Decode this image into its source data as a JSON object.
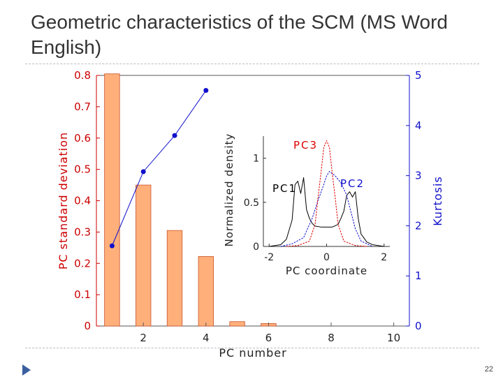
{
  "slide": {
    "title": "Geometric characteristics of the SCM (MS Word English)",
    "page_number": "22"
  },
  "colors": {
    "bar_fill": "#ffb07a",
    "bar_stroke": "#c8502a",
    "left_axis": "#cc0000",
    "right_axis": "#1010cc",
    "pc1": "#000000",
    "pc2": "#1010cc",
    "pc3": "#dd0000",
    "title": "#333333",
    "rule": "#b8bcc4",
    "bullet": "#3a5f9e"
  },
  "chart_data": [
    {
      "type": "bar",
      "xlabel": "PC number",
      "ylabel": "PC standard deviation",
      "y2label": "Kurtosis",
      "xlim": [
        0.5,
        10.5
      ],
      "ylim": [
        0,
        0.8
      ],
      "y2lim": [
        0,
        5
      ],
      "xticks": [
        "2",
        "4",
        "6",
        "8",
        "10"
      ],
      "yticks": [
        "0",
        "0.1",
        "0.2",
        "0.3",
        "0.4",
        "0.5",
        "0.6",
        "0.7",
        "0.8"
      ],
      "y2ticks": [
        "0",
        "1",
        "2",
        "3",
        "4",
        "5"
      ],
      "categories": [
        1,
        2,
        3,
        4,
        5,
        6
      ],
      "values": [
        0.805,
        0.45,
        0.305,
        0.222,
        0.014,
        0.008
      ],
      "overlay_line": {
        "axis": "right",
        "x": [
          1,
          2,
          3,
          4
        ],
        "y": [
          1.6,
          3.08,
          3.8,
          4.7
        ]
      }
    },
    {
      "type": "line",
      "xlabel": "PC coordinate",
      "ylabel": "Normalized density",
      "xlim": [
        -2.2,
        2.2
      ],
      "ylim": [
        0,
        1.25
      ],
      "xticks": [
        "-2",
        "0",
        "2"
      ],
      "yticks": [
        "0",
        "0.5",
        "1"
      ],
      "series": [
        {
          "name": "PC1",
          "x": [
            -2.0,
            -1.6,
            -1.4,
            -1.2,
            -1.1,
            -1.0,
            -0.9,
            -0.8,
            -0.7,
            -0.6,
            -0.5,
            -0.4,
            -0.2,
            0.0,
            0.2,
            0.4,
            0.5,
            0.6,
            0.7,
            0.8,
            0.9,
            1.0,
            1.1,
            1.2,
            1.4,
            1.6,
            2.0
          ],
          "y": [
            0.0,
            0.02,
            0.08,
            0.3,
            0.7,
            0.74,
            0.6,
            0.78,
            0.42,
            0.32,
            0.26,
            0.23,
            0.22,
            0.22,
            0.22,
            0.25,
            0.32,
            0.4,
            0.58,
            0.62,
            0.56,
            0.62,
            0.32,
            0.14,
            0.05,
            0.02,
            0.0
          ]
        },
        {
          "name": "PC2",
          "x": [
            -1.6,
            -1.2,
            -0.8,
            -0.5,
            -0.3,
            -0.1,
            0.0,
            0.1,
            0.3,
            0.5,
            0.7,
            0.8,
            1.0,
            1.2,
            1.6
          ],
          "y": [
            0.0,
            0.03,
            0.1,
            0.32,
            0.52,
            0.7,
            0.8,
            0.85,
            0.8,
            0.72,
            0.58,
            0.45,
            0.2,
            0.06,
            0.0
          ]
        },
        {
          "name": "PC3",
          "x": [
            -1.4,
            -1.0,
            -0.6,
            -0.4,
            -0.3,
            -0.2,
            -0.1,
            0.0,
            0.1,
            0.2,
            0.3,
            0.4,
            0.6,
            1.0,
            1.4
          ],
          "y": [
            0.0,
            0.01,
            0.06,
            0.25,
            0.55,
            0.82,
            1.12,
            1.2,
            1.12,
            0.82,
            0.55,
            0.25,
            0.06,
            0.01,
            0.0
          ]
        }
      ]
    }
  ]
}
